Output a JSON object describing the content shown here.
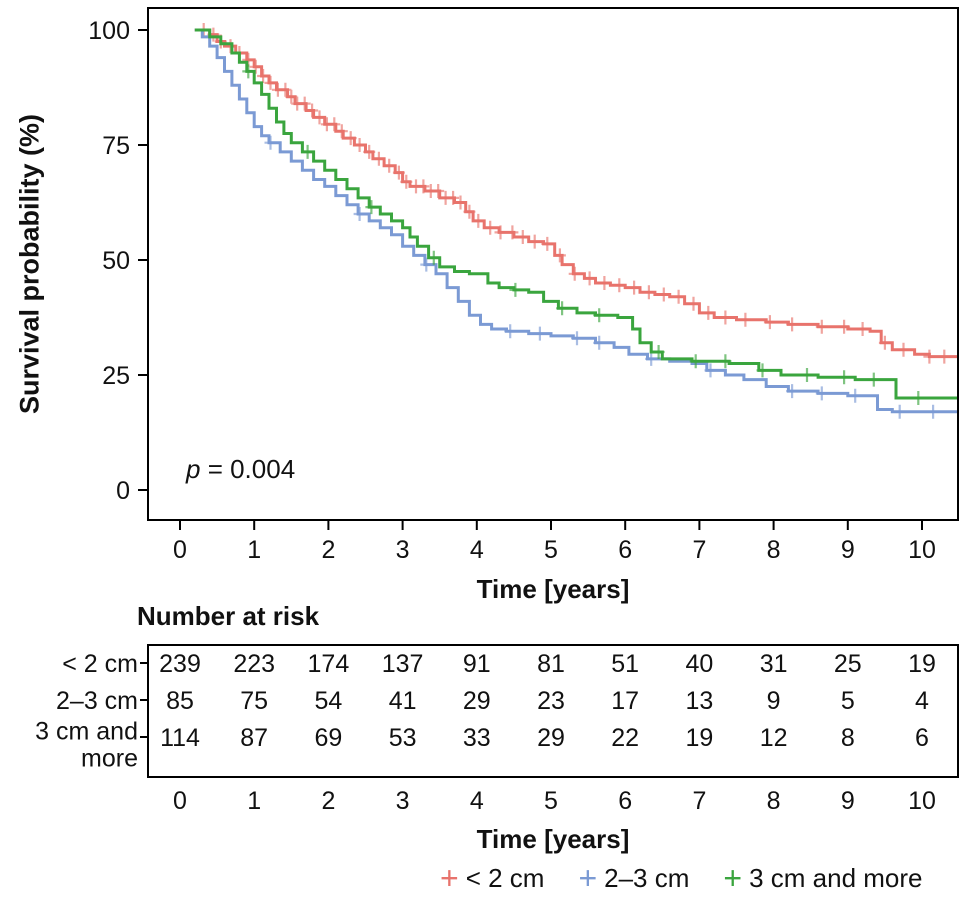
{
  "labels": {
    "y_axis": "Survival probability (%)",
    "x_axis": "Time [years]",
    "x_axis_bottom": "Time [years]",
    "risk_table_title": "Number at risk",
    "p_italic": "p",
    "p_rest": " = 0.004",
    "censor_marker": "+"
  },
  "chart_data": {
    "type": "line",
    "variant": "kaplan_meier_step",
    "title": "",
    "xlabel": "Time [years]",
    "ylabel": "Survival probability (%)",
    "xlim": [
      -0.45,
      10.5
    ],
    "ylim": [
      -4,
      105
    ],
    "x_ticks": [
      0,
      1,
      2,
      3,
      4,
      5,
      6,
      7,
      8,
      9,
      10
    ],
    "y_ticks": [
      0,
      25,
      50,
      75,
      100
    ],
    "grid": false,
    "legend_position": "bottom",
    "p_value_text": "p = 0.004",
    "risk_table_title": "Number at risk",
    "risk_table_xlabel": "Time [years]",
    "risk_table_times": [
      0,
      1,
      2,
      3,
      4,
      5,
      6,
      7,
      8,
      9,
      10
    ],
    "series": [
      {
        "name": "< 2 cm",
        "color": "#E8736C",
        "number_at_risk": [
          239,
          223,
          174,
          137,
          91,
          81,
          51,
          40,
          31,
          25,
          19
        ],
        "steps": [
          [
            0.2,
            100
          ],
          [
            0.4,
            99
          ],
          [
            0.5,
            97.5
          ],
          [
            0.6,
            96.5
          ],
          [
            0.75,
            95
          ],
          [
            0.9,
            93.5
          ],
          [
            1.0,
            92
          ],
          [
            1.1,
            90
          ],
          [
            1.2,
            88.5
          ],
          [
            1.3,
            87
          ],
          [
            1.45,
            85.5
          ],
          [
            1.55,
            84
          ],
          [
            1.7,
            82.5
          ],
          [
            1.8,
            81
          ],
          [
            1.95,
            79.5
          ],
          [
            2.1,
            78
          ],
          [
            2.2,
            76.5
          ],
          [
            2.35,
            75
          ],
          [
            2.5,
            73.5
          ],
          [
            2.6,
            72
          ],
          [
            2.75,
            70.5
          ],
          [
            2.9,
            69
          ],
          [
            3.0,
            67
          ],
          [
            3.1,
            66
          ],
          [
            3.3,
            65
          ],
          [
            3.5,
            63.5
          ],
          [
            3.7,
            62.5
          ],
          [
            3.85,
            60.5
          ],
          [
            3.95,
            58.5
          ],
          [
            4.1,
            57
          ],
          [
            4.3,
            56
          ],
          [
            4.5,
            55
          ],
          [
            4.7,
            54
          ],
          [
            4.9,
            53.5
          ],
          [
            5.05,
            51
          ],
          [
            5.15,
            49
          ],
          [
            5.3,
            47
          ],
          [
            5.45,
            46
          ],
          [
            5.6,
            45
          ],
          [
            5.8,
            44.5
          ],
          [
            6.0,
            44
          ],
          [
            6.2,
            43
          ],
          [
            6.4,
            42.5
          ],
          [
            6.6,
            42
          ],
          [
            6.8,
            40.5
          ],
          [
            7.0,
            38.5
          ],
          [
            7.2,
            37.5
          ],
          [
            7.5,
            37
          ],
          [
            7.9,
            36.5
          ],
          [
            8.2,
            36
          ],
          [
            8.6,
            35.5
          ],
          [
            9.0,
            35
          ],
          [
            9.3,
            34.5
          ],
          [
            9.45,
            32
          ],
          [
            9.6,
            30.5
          ],
          [
            9.9,
            29.5
          ],
          [
            10.1,
            29
          ],
          [
            10.5,
            29
          ]
        ],
        "censor_times": [
          0.32,
          0.45,
          0.55,
          0.68,
          0.8,
          0.92,
          1.02,
          1.12,
          1.22,
          1.32,
          1.42,
          1.5,
          1.58,
          1.68,
          1.78,
          1.88,
          1.98,
          2.08,
          2.18,
          2.3,
          2.42,
          2.55,
          2.68,
          2.82,
          2.95,
          3.05,
          3.18,
          3.28,
          3.38,
          3.48,
          3.58,
          3.68,
          3.78,
          3.9,
          4.02,
          4.18,
          4.32,
          4.48,
          4.62,
          4.78,
          4.95,
          5.12,
          5.32,
          5.52,
          5.72,
          5.92,
          6.12,
          6.32,
          6.52,
          6.72,
          6.92,
          7.12,
          7.35,
          7.62,
          7.95,
          8.25,
          8.65,
          8.95,
          9.2,
          9.5,
          9.75,
          10.1,
          10.3
        ]
      },
      {
        "name": "2–3 cm",
        "color": "#7B9AD4",
        "number_at_risk": [
          85,
          75,
          54,
          41,
          29,
          23,
          17,
          13,
          9,
          5,
          4
        ],
        "steps": [
          [
            0.2,
            100
          ],
          [
            0.3,
            98.5
          ],
          [
            0.4,
            96.5
          ],
          [
            0.5,
            94
          ],
          [
            0.6,
            91
          ],
          [
            0.7,
            88
          ],
          [
            0.8,
            85
          ],
          [
            0.9,
            82
          ],
          [
            1.0,
            79
          ],
          [
            1.1,
            77
          ],
          [
            1.2,
            75.5
          ],
          [
            1.35,
            73.5
          ],
          [
            1.5,
            71.5
          ],
          [
            1.65,
            69.5
          ],
          [
            1.8,
            67.5
          ],
          [
            1.95,
            66
          ],
          [
            2.1,
            64
          ],
          [
            2.25,
            62
          ],
          [
            2.4,
            60
          ],
          [
            2.55,
            58.5
          ],
          [
            2.7,
            57
          ],
          [
            2.85,
            55.5
          ],
          [
            3.0,
            53
          ],
          [
            3.15,
            51
          ],
          [
            3.3,
            49
          ],
          [
            3.45,
            47
          ],
          [
            3.6,
            44
          ],
          [
            3.75,
            41
          ],
          [
            3.9,
            38
          ],
          [
            4.05,
            36
          ],
          [
            4.2,
            35
          ],
          [
            4.4,
            34.5
          ],
          [
            4.7,
            34
          ],
          [
            5.0,
            33.5
          ],
          [
            5.3,
            33
          ],
          [
            5.6,
            32
          ],
          [
            5.85,
            31
          ],
          [
            6.05,
            29.5
          ],
          [
            6.3,
            28.5
          ],
          [
            6.6,
            28
          ],
          [
            6.9,
            27.5
          ],
          [
            7.1,
            26
          ],
          [
            7.35,
            25
          ],
          [
            7.6,
            24
          ],
          [
            7.9,
            22.5
          ],
          [
            8.2,
            21.5
          ],
          [
            8.6,
            21
          ],
          [
            9.0,
            20.5
          ],
          [
            9.4,
            17.5
          ],
          [
            9.6,
            17
          ],
          [
            10.5,
            17
          ]
        ],
        "censor_times": [
          1.22,
          2.42,
          3.32,
          4.45,
          4.85,
          5.35,
          5.65,
          6.35,
          7.15,
          8.25,
          8.65,
          9.1,
          9.7,
          10.15
        ]
      },
      {
        "name": "3 cm and more",
        "label_lines": [
          "3 cm and",
          "more"
        ],
        "color": "#3AA53E",
        "number_at_risk": [
          114,
          87,
          69,
          53,
          33,
          29,
          22,
          19,
          12,
          8,
          6
        ],
        "steps": [
          [
            0.2,
            100
          ],
          [
            0.4,
            98.5
          ],
          [
            0.55,
            97
          ],
          [
            0.7,
            95
          ],
          [
            0.8,
            93
          ],
          [
            0.9,
            91
          ],
          [
            1.0,
            88.5
          ],
          [
            1.1,
            86
          ],
          [
            1.2,
            83
          ],
          [
            1.3,
            80
          ],
          [
            1.4,
            77.5
          ],
          [
            1.5,
            75.5
          ],
          [
            1.65,
            73.5
          ],
          [
            1.8,
            71.5
          ],
          [
            1.95,
            69.5
          ],
          [
            2.1,
            67.5
          ],
          [
            2.25,
            65.5
          ],
          [
            2.4,
            63.5
          ],
          [
            2.55,
            61.5
          ],
          [
            2.7,
            60
          ],
          [
            2.85,
            58.5
          ],
          [
            3.0,
            57
          ],
          [
            3.1,
            55
          ],
          [
            3.2,
            53
          ],
          [
            3.35,
            50.5
          ],
          [
            3.5,
            48.5
          ],
          [
            3.7,
            47.5
          ],
          [
            3.9,
            47
          ],
          [
            4.15,
            45
          ],
          [
            4.3,
            44
          ],
          [
            4.5,
            43.5
          ],
          [
            4.7,
            43
          ],
          [
            4.9,
            41
          ],
          [
            5.1,
            39.5
          ],
          [
            5.35,
            38.5
          ],
          [
            5.6,
            38
          ],
          [
            5.9,
            37.5
          ],
          [
            6.1,
            35
          ],
          [
            6.2,
            32
          ],
          [
            6.35,
            30
          ],
          [
            6.5,
            28.5
          ],
          [
            6.9,
            28
          ],
          [
            7.4,
            27.5
          ],
          [
            7.8,
            26
          ],
          [
            8.1,
            25
          ],
          [
            8.6,
            24.5
          ],
          [
            9.1,
            24
          ],
          [
            9.65,
            20
          ],
          [
            10.5,
            20
          ]
        ],
        "censor_times": [
          0.92,
          1.72,
          2.58,
          3.42,
          4.52,
          5.15,
          5.65,
          6.45,
          6.95,
          7.35,
          7.85,
          8.45,
          8.95,
          9.35,
          9.95
        ]
      }
    ]
  }
}
